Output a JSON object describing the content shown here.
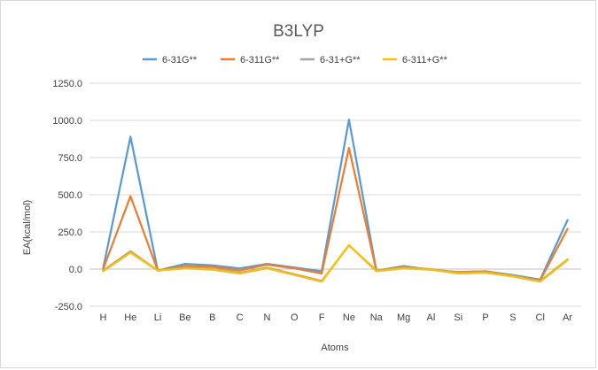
{
  "chart_data": {
    "type": "line",
    "title": "B3LYP",
    "xlabel": "Atoms",
    "ylabel": "EA(kcal/mol)",
    "ylim": [
      -250,
      1250
    ],
    "yticks": [
      -250,
      0,
      250,
      500,
      750,
      1000,
      1250
    ],
    "ytick_labels": [
      "-250.0",
      "0.0",
      "250.0",
      "500.0",
      "750.0",
      "1000.0",
      "1250.0"
    ],
    "grid": true,
    "legend_position": "top",
    "categories": [
      "H",
      "He",
      "Li",
      "Be",
      "B",
      "C",
      "N",
      "O",
      "F",
      "Ne",
      "Na",
      "Mg",
      "Al",
      "Si",
      "P",
      "S",
      "Cl",
      "Ar"
    ],
    "series": [
      {
        "name": "6-31G**",
        "color": "#5b9bd5",
        "values": [
          5,
          890,
          -10,
          35,
          25,
          5,
          35,
          10,
          -15,
          1005,
          -10,
          20,
          -5,
          -20,
          -15,
          -40,
          -70,
          330
        ]
      },
      {
        "name": "6-311G**",
        "color": "#ed7d31",
        "values": [
          0,
          490,
          -10,
          20,
          15,
          -10,
          30,
          5,
          -30,
          815,
          -10,
          15,
          -5,
          -20,
          -15,
          -45,
          -75,
          270
        ]
      },
      {
        "name": "6-31+G**",
        "color": "#a5a5a5",
        "values": [
          -10,
          120,
          -10,
          10,
          0,
          -25,
          10,
          -35,
          -80,
          160,
          -10,
          10,
          0,
          -25,
          -20,
          -45,
          -80,
          65
        ]
      },
      {
        "name": "6-311+G**",
        "color": "#ffc000",
        "values": [
          -15,
          110,
          -10,
          5,
          -5,
          -30,
          5,
          -40,
          -85,
          160,
          -15,
          5,
          -5,
          -30,
          -25,
          -50,
          -85,
          60
        ]
      }
    ]
  }
}
